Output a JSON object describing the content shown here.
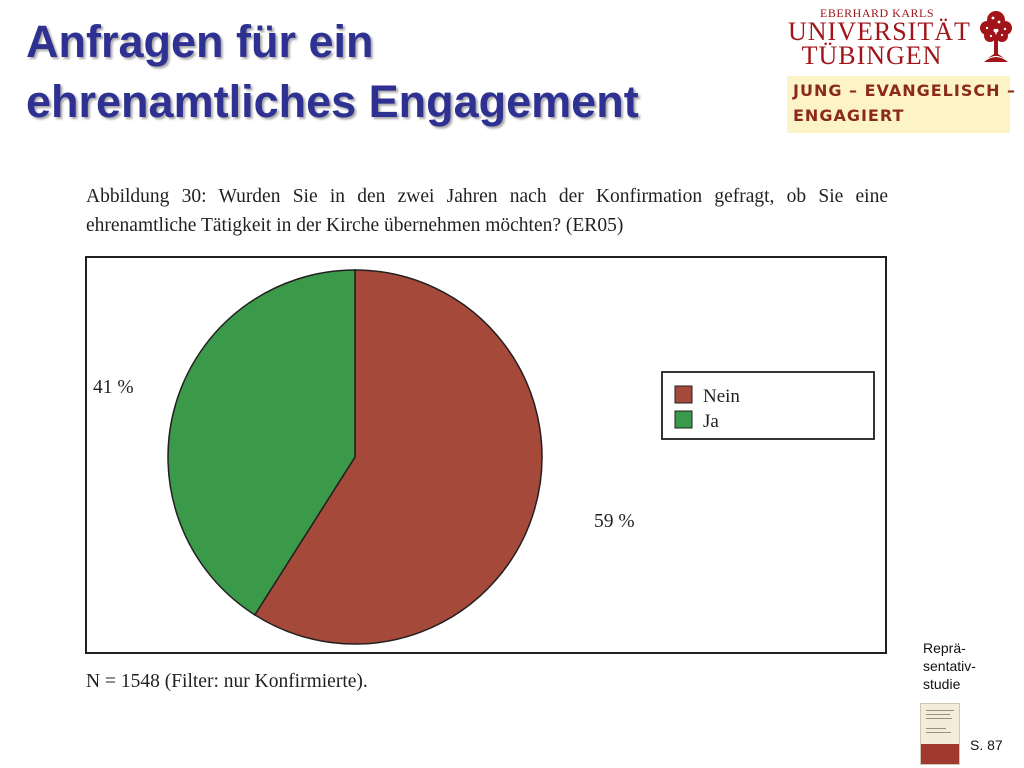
{
  "slide": {
    "title_line1": "Anfragen für ein",
    "title_line2": "ehrenamtliches Engagement",
    "title_color": "#2e3192"
  },
  "logo": {
    "small_text": "EBERHARD KARLS",
    "line1": "UNIVERSITÄT",
    "line2": "TÜBINGEN",
    "color": "#a1151a",
    "icon": "tree-icon"
  },
  "project_box": {
    "line1": "JUNG – EVANGELISCH –",
    "line2": "ENGAGIERT",
    "background": "#fcf3c6",
    "text_color": "#8b2a1a"
  },
  "figure": {
    "caption": "Abbildung 30: Wurden Sie in den zwei Jahren nach der Konfirmation gefragt, ob Sie eine ehrenamtliche Tätigkeit in der Kirche übernehmen möchten? (ER05)",
    "footnote": "N = 1548 (Filter: nur Konfirmierte)."
  },
  "chart_data": {
    "type": "pie",
    "title": "",
    "slices": [
      {
        "name": "Nein",
        "value": 59,
        "label": "59 %",
        "color": "#a54a3a"
      },
      {
        "name": "Ja",
        "value": 41,
        "label": "41 %",
        "color": "#3a9a4a"
      }
    ],
    "legend": {
      "placement": "right",
      "entries": [
        "Nein",
        "Ja"
      ]
    }
  },
  "side": {
    "label_line1": "Reprä-",
    "label_line2": "sentativ-",
    "label_line3": "studie",
    "page": "S. 87",
    "thumb_icon": "book-cover-icon"
  }
}
